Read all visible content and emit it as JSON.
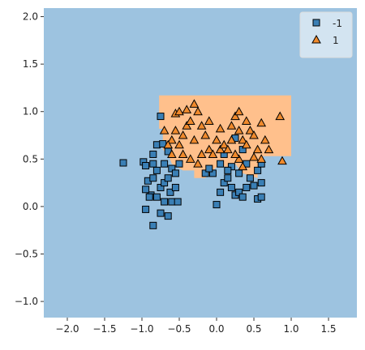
{
  "chart_data": {
    "type": "decision-region",
    "xlim": [
      -2.315,
      1.88
    ],
    "ylim": [
      -1.17,
      2.09
    ],
    "xticks": [
      {
        "value": -2,
        "label": "−2.0"
      },
      {
        "value": -1.5,
        "label": "−1.5"
      },
      {
        "value": -1,
        "label": "−1.0"
      },
      {
        "value": -0.5,
        "label": "−0.5"
      },
      {
        "value": 0,
        "label": "0.0"
      },
      {
        "value": 0.5,
        "label": "0.5"
      },
      {
        "value": 1,
        "label": "1.0"
      },
      {
        "value": 1.5,
        "label": "1.5"
      }
    ],
    "yticks": [
      {
        "value": -1,
        "label": "−1.0"
      },
      {
        "value": -0.5,
        "label": "−0.5"
      },
      {
        "value": 0,
        "label": "0.0"
      },
      {
        "value": 0.5,
        "label": "0.5"
      },
      {
        "value": 1,
        "label": "1.0"
      },
      {
        "value": 1.5,
        "label": "1.5"
      },
      {
        "value": 2,
        "label": "2.0"
      }
    ],
    "background_color": "#9dc3e0",
    "region": {
      "color": "#ffc08c",
      "x": [
        -0.77,
        1.0,
        1.0,
        0.62,
        0.62,
        0.55,
        0.55,
        0.35,
        0.25,
        0.15,
        0.05,
        -0.05,
        -0.15,
        -0.3,
        -0.3,
        -0.45,
        -0.6,
        -0.65,
        -0.72,
        -0.72,
        -0.77
      ],
      "y": [
        1.17,
        1.17,
        0.53,
        0.53,
        0.42,
        0.42,
        0.3,
        0.35,
        0.45,
        0.4,
        0.45,
        0.38,
        0.3,
        0.3,
        0.38,
        0.38,
        0.45,
        0.55,
        0.6,
        0.82,
        0.82
      ]
    },
    "legend": "upper right",
    "series": [
      {
        "name": "-1",
        "marker": "square",
        "color": "#3a7fb5",
        "x": [
          -1.25,
          -0.98,
          -0.95,
          -0.92,
          -0.85,
          -0.88,
          -0.95,
          -0.9,
          -0.8,
          -0.75,
          -0.7,
          -0.65,
          -0.6,
          -0.62,
          -0.55,
          -0.52,
          -0.7,
          -0.65,
          -0.85,
          -0.95,
          -0.75,
          -0.8,
          -0.7,
          -0.65,
          -0.8,
          -0.72,
          -0.85,
          -0.6,
          -0.55,
          -0.85,
          -0.75,
          -0.5,
          0.0,
          0.05,
          0.1,
          0.15,
          0.2,
          0.25,
          0.3,
          0.35,
          0.4,
          0.45,
          0.5,
          0.55,
          0.6,
          0.3,
          0.2,
          0.15,
          -0.05,
          0.05,
          0.4,
          0.55,
          0.6,
          0.25,
          0.35,
          0.6,
          -0.15,
          0.1,
          -0.1
        ],
        "values": [
          0.46,
          0.47,
          0.43,
          0.27,
          0.3,
          0.12,
          0.18,
          0.1,
          0.1,
          0.2,
          0.25,
          0.3,
          0.05,
          0.15,
          0.2,
          0.05,
          0.05,
          -0.1,
          -0.2,
          -0.03,
          -0.07,
          0.38,
          0.45,
          0.58,
          0.65,
          0.66,
          0.55,
          0.4,
          0.35,
          0.45,
          0.95,
          0.45,
          0.02,
          0.15,
          0.25,
          0.3,
          0.2,
          0.12,
          0.15,
          0.1,
          0.2,
          0.3,
          0.22,
          0.08,
          0.1,
          0.35,
          0.42,
          0.38,
          0.35,
          0.45,
          0.45,
          0.38,
          0.45,
          0.72,
          0.6,
          0.25,
          0.35,
          0.55,
          0.4
        ]
      },
      {
        "name": "1",
        "marker": "triangle",
        "color": "#f08a2c",
        "x": [
          -0.7,
          -0.6,
          -0.55,
          -0.5,
          -0.45,
          -0.4,
          -0.35,
          -0.3,
          -0.25,
          -0.2,
          -0.15,
          -0.1,
          -0.05,
          0.0,
          0.05,
          0.1,
          -0.45,
          -0.35,
          -0.25,
          -0.4,
          -0.3,
          -0.1,
          -0.6,
          -0.65,
          -0.55,
          0.2,
          0.25,
          0.3,
          0.35,
          0.4,
          0.45,
          0.5,
          0.55,
          0.6,
          0.65,
          0.7,
          0.85,
          0.88,
          0.3,
          0.35,
          0.5,
          0.25,
          0.15,
          0.4,
          0.3,
          0.05,
          -0.2,
          0.6,
          -0.5,
          0.2
        ],
        "values": [
          0.8,
          0.7,
          0.8,
          0.65,
          0.75,
          0.85,
          0.9,
          0.7,
          1.0,
          0.85,
          0.75,
          0.6,
          0.55,
          0.7,
          0.6,
          0.65,
          0.55,
          0.5,
          0.45,
          1.02,
          1.08,
          0.9,
          0.55,
          0.65,
          0.98,
          0.85,
          0.95,
          0.8,
          0.7,
          0.65,
          0.8,
          0.75,
          0.6,
          0.88,
          0.7,
          0.6,
          0.95,
          0.48,
          0.5,
          0.42,
          0.52,
          0.55,
          0.6,
          0.9,
          1.0,
          0.82,
          0.55,
          0.5,
          1.0,
          0.7
        ]
      }
    ]
  }
}
